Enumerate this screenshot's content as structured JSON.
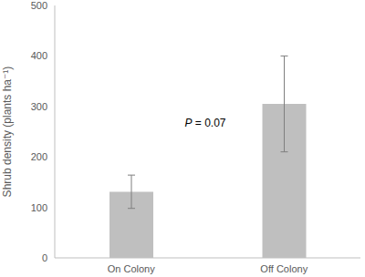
{
  "chart_data": {
    "type": "bar",
    "categories": [
      "On Colony",
      "Off Colony"
    ],
    "values": [
      131,
      305
    ],
    "errors": [
      33,
      95
    ],
    "color": "#bfbfbf",
    "ylim": [
      0,
      500
    ],
    "yticks": [
      0,
      100,
      200,
      300,
      400,
      500
    ],
    "y_label": "Shrub density (plants ha⁻¹)",
    "annotation": "P = 0.07",
    "grid": false
  }
}
